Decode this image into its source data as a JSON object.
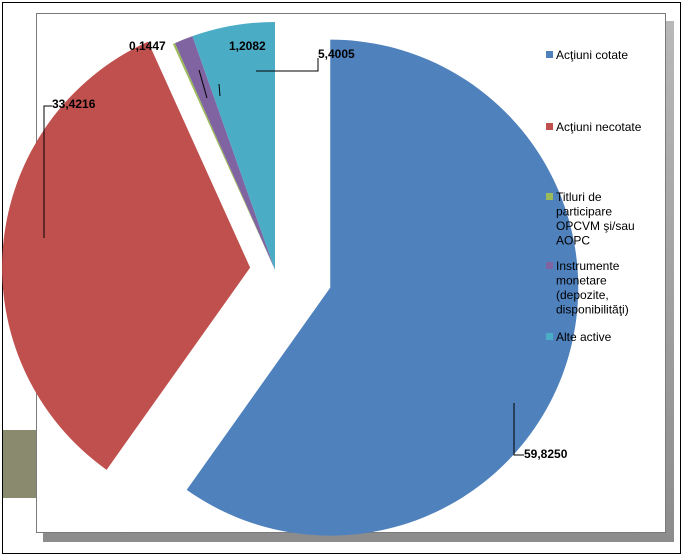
{
  "chart_data": {
    "type": "pie",
    "exploded": true,
    "start_angle_deg": 0,
    "direction": "clockwise",
    "legend_position": "right",
    "categories": [
      "Acţiuni cotate",
      "Acţiuni necotate",
      "Titluri de participare OPCVM şi/sau AOPC",
      "Instrumente monetare (depozite, disponibilităţi)",
      "Alte active"
    ],
    "values": [
      59.825,
      33.4216,
      0.1447,
      1.2082,
      5.4005
    ],
    "data_labels": [
      "59,8250",
      "33,4216",
      "0,1447",
      "1,2082",
      "5,4005"
    ],
    "legend_lines": [
      [
        "Acţiuni cotate"
      ],
      [
        "Acţiuni necotate"
      ],
      [
        "Titluri de",
        "participare",
        "OPCVM şi/sau",
        "AOPC"
      ],
      [
        "Instrumente",
        "monetare",
        "(depozite,",
        "disponibilităţi)"
      ],
      [
        "Alte active"
      ]
    ],
    "colors": [
      "#4f81bd",
      "#c0504d",
      "#9bbb59",
      "#8064a2",
      "#4bacc6"
    ]
  }
}
